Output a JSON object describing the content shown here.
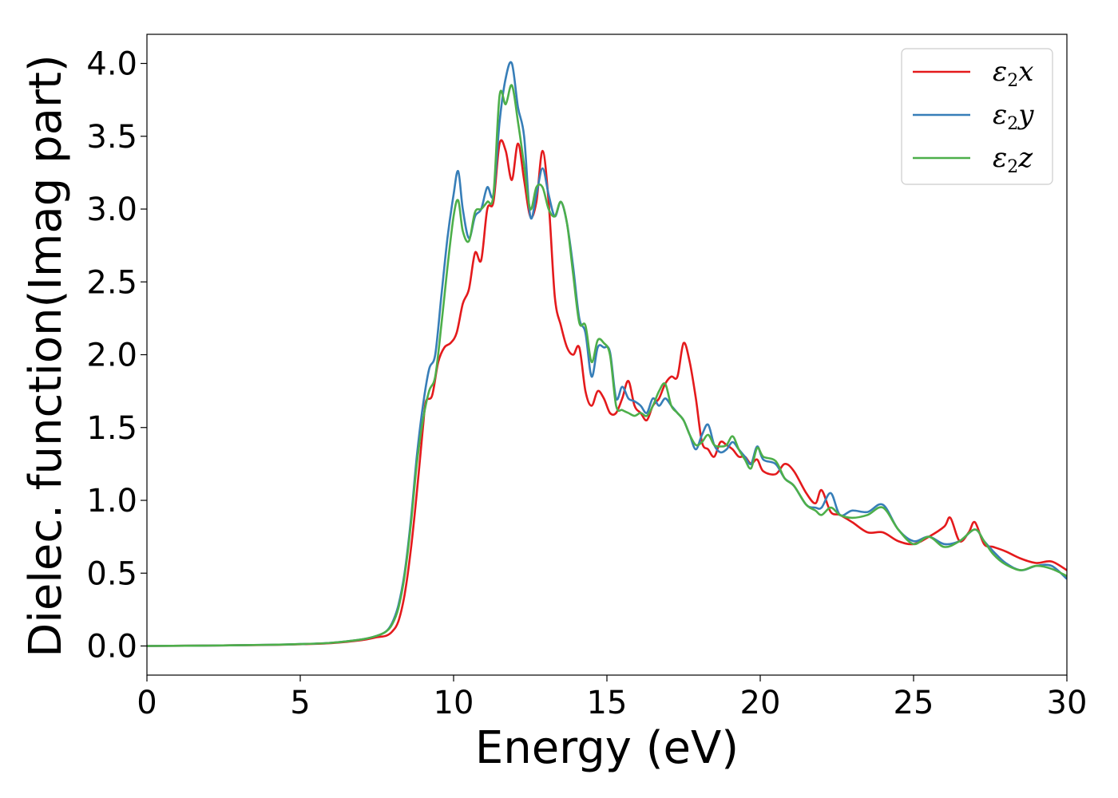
{
  "chart_data": {
    "type": "line",
    "xlabel": "Energy (eV)",
    "ylabel": "Dielec. function(Imag part)",
    "xlim": [
      0,
      30
    ],
    "ylim": [
      -0.2,
      4.2
    ],
    "xticks": [
      0,
      5,
      10,
      15,
      20,
      25,
      30
    ],
    "yticks": [
      0.0,
      0.5,
      1.0,
      1.5,
      2.0,
      2.5,
      3.0,
      3.5,
      4.0
    ],
    "ytick_labels": [
      "0.0",
      "0.5",
      "1.0",
      "1.5",
      "2.0",
      "2.5",
      "3.0",
      "3.5",
      "4.0"
    ],
    "grid": false,
    "legend_position": "top-right",
    "series": [
      {
        "name": "ε2x",
        "symbol": "ε",
        "subscript": "2",
        "suffix": "x",
        "color": "#e41a1c",
        "points": [
          [
            0,
            0
          ],
          [
            2,
            0.003
          ],
          [
            4,
            0.007
          ],
          [
            5,
            0.012
          ],
          [
            6,
            0.02
          ],
          [
            7,
            0.04
          ],
          [
            7.5,
            0.06
          ],
          [
            7.8,
            0.07
          ],
          [
            8.0,
            0.1
          ],
          [
            8.2,
            0.17
          ],
          [
            8.4,
            0.35
          ],
          [
            8.6,
            0.65
          ],
          [
            8.8,
            1.05
          ],
          [
            9.0,
            1.5
          ],
          [
            9.1,
            1.68
          ],
          [
            9.3,
            1.72
          ],
          [
            9.5,
            1.95
          ],
          [
            9.7,
            2.05
          ],
          [
            9.9,
            2.08
          ],
          [
            10.1,
            2.15
          ],
          [
            10.3,
            2.35
          ],
          [
            10.5,
            2.45
          ],
          [
            10.7,
            2.7
          ],
          [
            10.9,
            2.65
          ],
          [
            11.1,
            3.0
          ],
          [
            11.3,
            3.05
          ],
          [
            11.5,
            3.45
          ],
          [
            11.7,
            3.4
          ],
          [
            11.9,
            3.2
          ],
          [
            12.1,
            3.45
          ],
          [
            12.3,
            3.2
          ],
          [
            12.5,
            2.95
          ],
          [
            12.7,
            3.05
          ],
          [
            12.9,
            3.4
          ],
          [
            13.1,
            3.05
          ],
          [
            13.3,
            2.4
          ],
          [
            13.5,
            2.2
          ],
          [
            13.7,
            2.05
          ],
          [
            13.9,
            2.0
          ],
          [
            14.1,
            2.05
          ],
          [
            14.3,
            1.75
          ],
          [
            14.5,
            1.65
          ],
          [
            14.7,
            1.75
          ],
          [
            14.9,
            1.7
          ],
          [
            15.1,
            1.6
          ],
          [
            15.3,
            1.6
          ],
          [
            15.5,
            1.7
          ],
          [
            15.7,
            1.82
          ],
          [
            15.9,
            1.65
          ],
          [
            16.1,
            1.6
          ],
          [
            16.3,
            1.55
          ],
          [
            16.5,
            1.65
          ],
          [
            16.7,
            1.7
          ],
          [
            16.9,
            1.8
          ],
          [
            17.1,
            1.85
          ],
          [
            17.3,
            1.85
          ],
          [
            17.5,
            2.08
          ],
          [
            17.7,
            1.95
          ],
          [
            17.9,
            1.7
          ],
          [
            18.1,
            1.4
          ],
          [
            18.3,
            1.35
          ],
          [
            18.5,
            1.3
          ],
          [
            18.7,
            1.4
          ],
          [
            18.9,
            1.38
          ],
          [
            19.1,
            1.35
          ],
          [
            19.3,
            1.3
          ],
          [
            19.5,
            1.3
          ],
          [
            19.7,
            1.25
          ],
          [
            19.9,
            1.28
          ],
          [
            20.1,
            1.2
          ],
          [
            20.5,
            1.18
          ],
          [
            20.8,
            1.25
          ],
          [
            21.1,
            1.2
          ],
          [
            21.5,
            1.05
          ],
          [
            21.8,
            0.98
          ],
          [
            22.0,
            1.07
          ],
          [
            22.3,
            0.92
          ],
          [
            22.6,
            0.9
          ],
          [
            23.0,
            0.85
          ],
          [
            23.5,
            0.78
          ],
          [
            24.0,
            0.78
          ],
          [
            24.5,
            0.72
          ],
          [
            25.0,
            0.7
          ],
          [
            25.5,
            0.75
          ],
          [
            26.0,
            0.82
          ],
          [
            26.2,
            0.88
          ],
          [
            26.5,
            0.72
          ],
          [
            26.8,
            0.78
          ],
          [
            27.0,
            0.85
          ],
          [
            27.3,
            0.7
          ],
          [
            27.6,
            0.68
          ],
          [
            28.0,
            0.65
          ],
          [
            28.5,
            0.6
          ],
          [
            29.0,
            0.57
          ],
          [
            29.5,
            0.58
          ],
          [
            30,
            0.52
          ]
        ]
      },
      {
        "name": "ε2y",
        "symbol": "ε",
        "subscript": "2",
        "suffix": "y",
        "color": "#377eb8",
        "points": [
          [
            0,
            0
          ],
          [
            2,
            0.003
          ],
          [
            4,
            0.008
          ],
          [
            5,
            0.013
          ],
          [
            6,
            0.022
          ],
          [
            7,
            0.045
          ],
          [
            7.5,
            0.07
          ],
          [
            7.8,
            0.1
          ],
          [
            8.0,
            0.16
          ],
          [
            8.2,
            0.28
          ],
          [
            8.4,
            0.5
          ],
          [
            8.6,
            0.85
          ],
          [
            8.8,
            1.3
          ],
          [
            9.0,
            1.65
          ],
          [
            9.2,
            1.9
          ],
          [
            9.4,
            2.0
          ],
          [
            9.6,
            2.4
          ],
          [
            9.8,
            2.8
          ],
          [
            10.0,
            3.1
          ],
          [
            10.15,
            3.26
          ],
          [
            10.3,
            3.0
          ],
          [
            10.5,
            2.8
          ],
          [
            10.7,
            2.95
          ],
          [
            10.9,
            3.0
          ],
          [
            11.1,
            3.15
          ],
          [
            11.3,
            3.1
          ],
          [
            11.5,
            3.6
          ],
          [
            11.7,
            3.9
          ],
          [
            11.9,
            4.0
          ],
          [
            12.1,
            3.7
          ],
          [
            12.3,
            3.5
          ],
          [
            12.5,
            2.95
          ],
          [
            12.7,
            3.1
          ],
          [
            12.9,
            3.28
          ],
          [
            13.1,
            3.1
          ],
          [
            13.3,
            2.95
          ],
          [
            13.5,
            3.05
          ],
          [
            13.7,
            2.9
          ],
          [
            13.9,
            2.6
          ],
          [
            14.1,
            2.25
          ],
          [
            14.3,
            2.15
          ],
          [
            14.5,
            1.85
          ],
          [
            14.7,
            2.05
          ],
          [
            14.9,
            2.05
          ],
          [
            15.1,
            2.02
          ],
          [
            15.3,
            1.7
          ],
          [
            15.5,
            1.78
          ],
          [
            15.7,
            1.7
          ],
          [
            15.9,
            1.68
          ],
          [
            16.1,
            1.65
          ],
          [
            16.3,
            1.6
          ],
          [
            16.5,
            1.7
          ],
          [
            16.7,
            1.65
          ],
          [
            16.9,
            1.7
          ],
          [
            17.1,
            1.65
          ],
          [
            17.3,
            1.6
          ],
          [
            17.5,
            1.55
          ],
          [
            17.7,
            1.45
          ],
          [
            17.9,
            1.35
          ],
          [
            18.1,
            1.45
          ],
          [
            18.3,
            1.52
          ],
          [
            18.5,
            1.38
          ],
          [
            18.7,
            1.33
          ],
          [
            18.9,
            1.35
          ],
          [
            19.1,
            1.4
          ],
          [
            19.3,
            1.35
          ],
          [
            19.5,
            1.3
          ],
          [
            19.7,
            1.25
          ],
          [
            19.9,
            1.37
          ],
          [
            20.1,
            1.28
          ],
          [
            20.5,
            1.25
          ],
          [
            20.8,
            1.15
          ],
          [
            21.1,
            1.1
          ],
          [
            21.5,
            0.97
          ],
          [
            21.8,
            0.95
          ],
          [
            22.0,
            0.95
          ],
          [
            22.3,
            1.05
          ],
          [
            22.6,
            0.9
          ],
          [
            23.0,
            0.93
          ],
          [
            23.5,
            0.92
          ],
          [
            24.0,
            0.97
          ],
          [
            24.5,
            0.8
          ],
          [
            25.0,
            0.72
          ],
          [
            25.5,
            0.75
          ],
          [
            26.0,
            0.7
          ],
          [
            26.5,
            0.72
          ],
          [
            27.0,
            0.8
          ],
          [
            27.3,
            0.72
          ],
          [
            27.6,
            0.65
          ],
          [
            28.0,
            0.57
          ],
          [
            28.5,
            0.52
          ],
          [
            29.0,
            0.55
          ],
          [
            29.5,
            0.55
          ],
          [
            30,
            0.46
          ]
        ]
      },
      {
        "name": "ε2z",
        "symbol": "ε",
        "subscript": "2",
        "suffix": "z",
        "color": "#4daf4a",
        "points": [
          [
            0,
            0
          ],
          [
            2,
            0.003
          ],
          [
            4,
            0.008
          ],
          [
            5,
            0.013
          ],
          [
            6,
            0.022
          ],
          [
            7,
            0.045
          ],
          [
            7.5,
            0.07
          ],
          [
            7.8,
            0.1
          ],
          [
            8.0,
            0.15
          ],
          [
            8.2,
            0.26
          ],
          [
            8.4,
            0.48
          ],
          [
            8.6,
            0.82
          ],
          [
            8.8,
            1.25
          ],
          [
            9.0,
            1.55
          ],
          [
            9.2,
            1.75
          ],
          [
            9.4,
            1.85
          ],
          [
            9.6,
            2.2
          ],
          [
            9.8,
            2.6
          ],
          [
            10.0,
            2.95
          ],
          [
            10.15,
            3.06
          ],
          [
            10.3,
            2.85
          ],
          [
            10.5,
            2.78
          ],
          [
            10.7,
            2.98
          ],
          [
            10.9,
            3.0
          ],
          [
            11.1,
            3.05
          ],
          [
            11.3,
            3.1
          ],
          [
            11.5,
            3.78
          ],
          [
            11.7,
            3.72
          ],
          [
            11.9,
            3.85
          ],
          [
            12.1,
            3.6
          ],
          [
            12.3,
            3.3
          ],
          [
            12.5,
            3.0
          ],
          [
            12.7,
            3.15
          ],
          [
            12.9,
            3.15
          ],
          [
            13.1,
            3.0
          ],
          [
            13.3,
            2.95
          ],
          [
            13.5,
            3.05
          ],
          [
            13.7,
            2.9
          ],
          [
            13.9,
            2.55
          ],
          [
            14.1,
            2.22
          ],
          [
            14.3,
            2.2
          ],
          [
            14.5,
            1.95
          ],
          [
            14.7,
            2.1
          ],
          [
            14.9,
            2.08
          ],
          [
            15.1,
            2.0
          ],
          [
            15.3,
            1.65
          ],
          [
            15.5,
            1.62
          ],
          [
            15.7,
            1.6
          ],
          [
            15.9,
            1.58
          ],
          [
            16.1,
            1.6
          ],
          [
            16.3,
            1.58
          ],
          [
            16.5,
            1.65
          ],
          [
            16.7,
            1.75
          ],
          [
            16.9,
            1.8
          ],
          [
            17.1,
            1.65
          ],
          [
            17.3,
            1.6
          ],
          [
            17.5,
            1.55
          ],
          [
            17.7,
            1.45
          ],
          [
            17.9,
            1.38
          ],
          [
            18.1,
            1.4
          ],
          [
            18.3,
            1.45
          ],
          [
            18.5,
            1.38
          ],
          [
            18.7,
            1.37
          ],
          [
            18.9,
            1.38
          ],
          [
            19.1,
            1.44
          ],
          [
            19.3,
            1.35
          ],
          [
            19.5,
            1.28
          ],
          [
            19.7,
            1.22
          ],
          [
            19.9,
            1.36
          ],
          [
            20.1,
            1.3
          ],
          [
            20.5,
            1.27
          ],
          [
            20.8,
            1.15
          ],
          [
            21.1,
            1.1
          ],
          [
            21.5,
            0.97
          ],
          [
            21.8,
            0.93
          ],
          [
            22.0,
            0.9
          ],
          [
            22.3,
            0.95
          ],
          [
            22.6,
            0.9
          ],
          [
            23.0,
            0.88
          ],
          [
            23.5,
            0.9
          ],
          [
            24.0,
            0.95
          ],
          [
            24.5,
            0.8
          ],
          [
            25.0,
            0.7
          ],
          [
            25.5,
            0.75
          ],
          [
            26.0,
            0.68
          ],
          [
            26.5,
            0.72
          ],
          [
            27.0,
            0.8
          ],
          [
            27.3,
            0.72
          ],
          [
            27.6,
            0.63
          ],
          [
            28.0,
            0.56
          ],
          [
            28.5,
            0.52
          ],
          [
            29.0,
            0.55
          ],
          [
            29.5,
            0.53
          ],
          [
            30,
            0.48
          ]
        ]
      }
    ]
  }
}
